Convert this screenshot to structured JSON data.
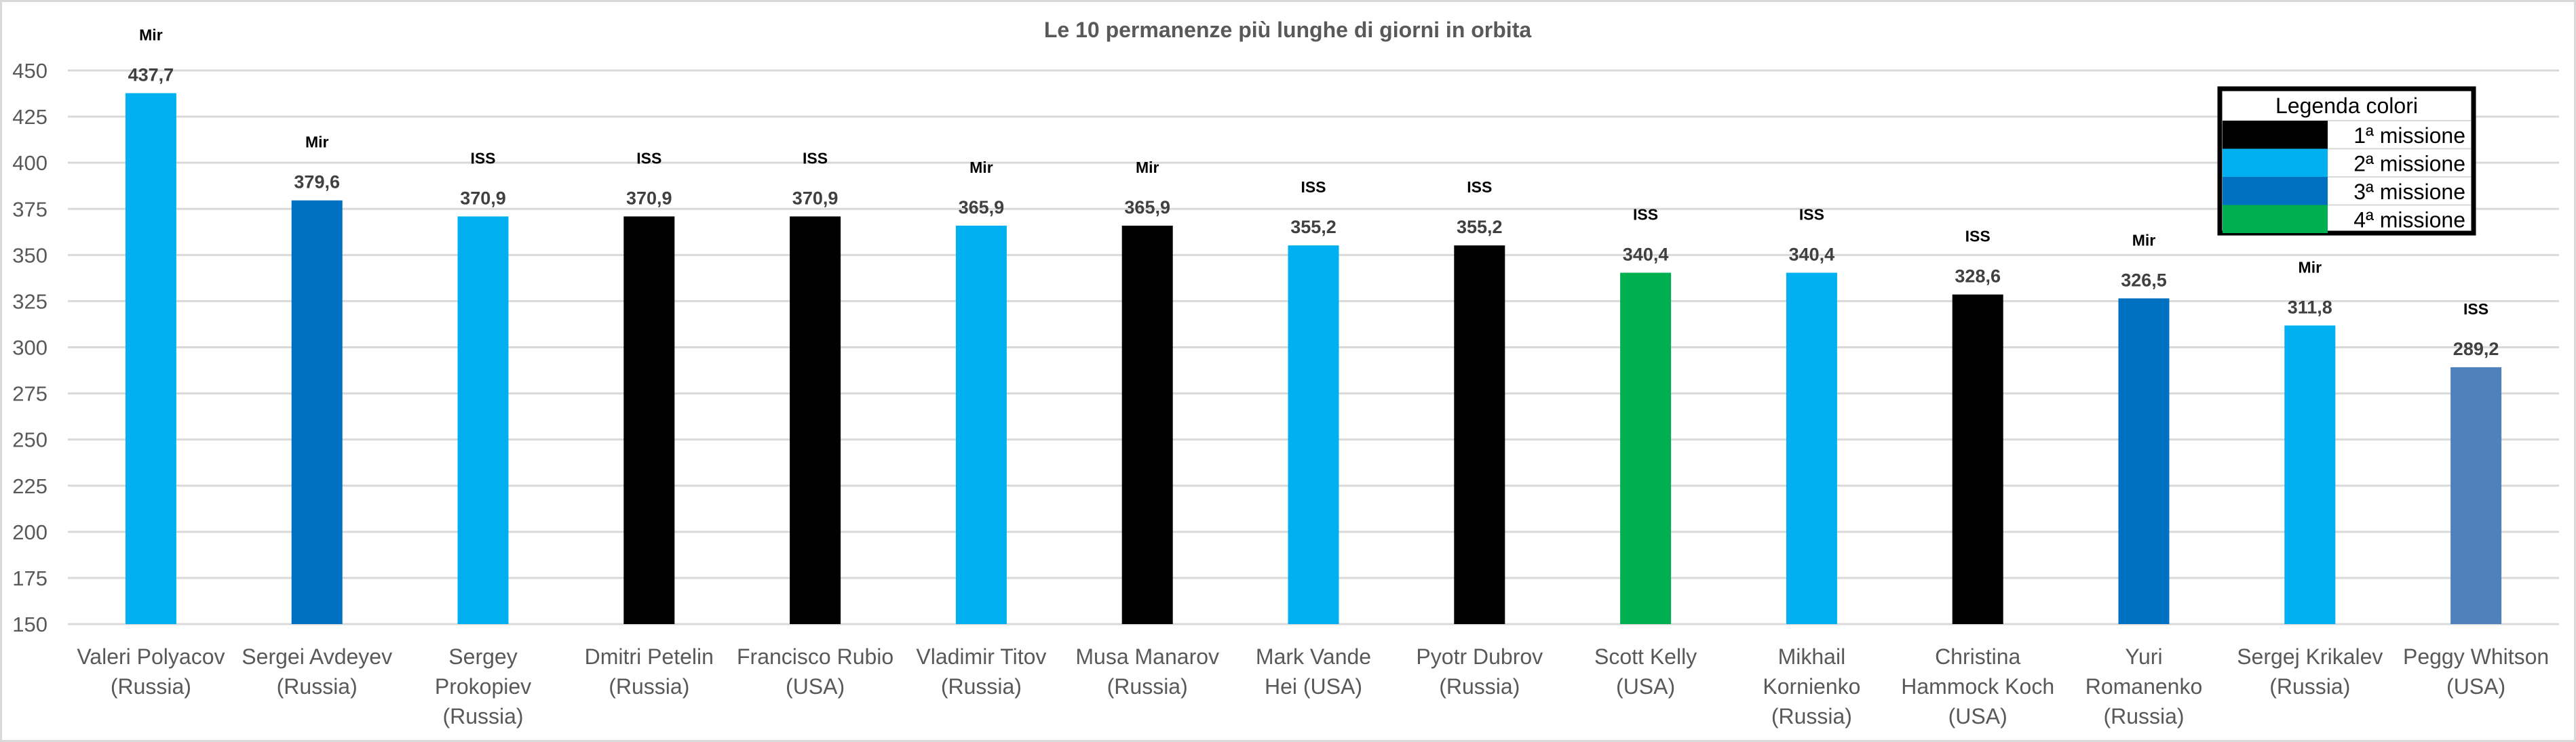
{
  "chart_data": {
    "type": "bar",
    "title": "Le 10 permanenze più lunghe di giorni in orbita",
    "xlabel": "",
    "ylabel": "",
    "ylim": [
      150,
      450
    ],
    "yticks": [
      150,
      175,
      200,
      225,
      250,
      275,
      300,
      325,
      350,
      375,
      400,
      425,
      450
    ],
    "grid": true,
    "categories": [
      [
        "Valeri Polyacov",
        "(Russia)"
      ],
      [
        "Sergei Avdeyev",
        "(Russia)"
      ],
      [
        "Sergey",
        "Prokopiev",
        "(Russia)"
      ],
      [
        "Dmitri Petelin",
        "(Russia)"
      ],
      [
        "Francisco Rubio",
        "(USA)"
      ],
      [
        "Vladimir Titov",
        "(Russia)"
      ],
      [
        "Musa Manarov",
        "(Russia)"
      ],
      [
        "Mark Vande",
        "Hei (USA)"
      ],
      [
        "Pyotr Dubrov",
        "(Russia)"
      ],
      [
        "Scott Kelly",
        "(USA)"
      ],
      [
        "Mikhail",
        "Kornienko",
        "(Russia)"
      ],
      [
        "Christina",
        "Hammock Koch",
        "(USA)"
      ],
      [
        "Yuri",
        "Romanenko",
        "(Russia)"
      ],
      [
        "Sergej Krikalev",
        "(Russia)"
      ],
      [
        "Peggy Whitson",
        "(USA)"
      ]
    ],
    "values": [
      437.7,
      379.6,
      370.9,
      370.9,
      370.9,
      365.9,
      365.9,
      355.2,
      355.2,
      340.4,
      340.4,
      328.6,
      326.5,
      311.8,
      289.2
    ],
    "value_labels": [
      "437,7",
      "379,6",
      "370,9",
      "370,9",
      "370,9",
      "365,9",
      "365,9",
      "355,2",
      "355,2",
      "340,4",
      "340,4",
      "328,6",
      "326,5",
      "311,8",
      "289,2"
    ],
    "stations": [
      "Mir",
      "Mir",
      "ISS",
      "ISS",
      "ISS",
      "Mir",
      "Mir",
      "ISS",
      "ISS",
      "ISS",
      "ISS",
      "ISS",
      "Mir",
      "Mir",
      "ISS"
    ],
    "bar_colors": [
      "#00B0F0",
      "#0070C0",
      "#00B0F0",
      "#000000",
      "#000000",
      "#00B0F0",
      "#000000",
      "#00B0F0",
      "#000000",
      "#00B050",
      "#00B0F0",
      "#000000",
      "#0070C0",
      "#00B0F0",
      "#4F81BD"
    ],
    "legend": {
      "title": "Legenda colori",
      "placement": "top-right",
      "entries": [
        {
          "label": "1ª missione",
          "color": "#000000"
        },
        {
          "label": "2ª missione",
          "color": "#00B0F0"
        },
        {
          "label": "3ª missione",
          "color": "#0070C0"
        },
        {
          "label": "4ª missione",
          "color": "#00B050"
        }
      ]
    }
  }
}
